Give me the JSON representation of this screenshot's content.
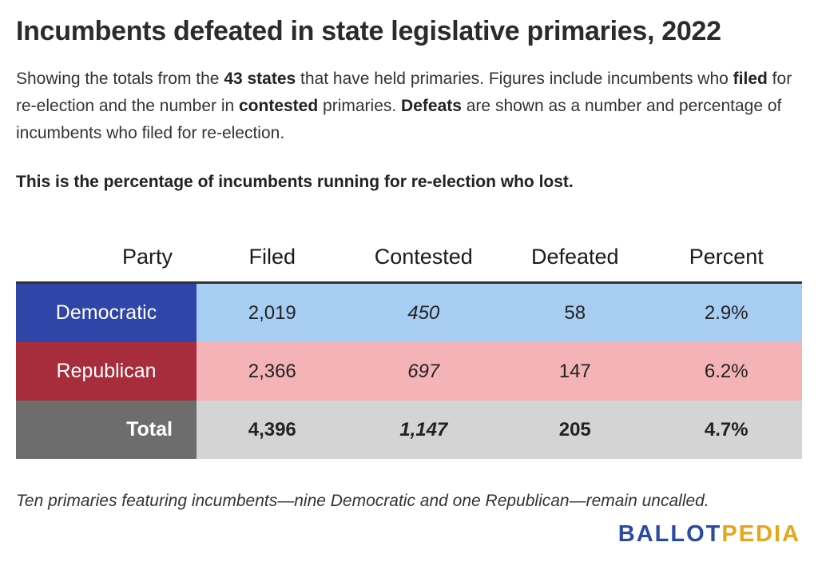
{
  "chart_data": {
    "type": "table",
    "title": "Incumbents defeated in state legislative primaries, 2022",
    "description": {
      "p1": "Showing the totals from the ",
      "b1": "43 states",
      "p2": " that have held primaries. Figures include incumbents who ",
      "b2": "filed",
      "p3": " for re-election and the number in ",
      "b3": "contested",
      "p4": " primaries. ",
      "b4": "Defeats",
      "p5": " are shown as a number and percentage of incumbents who filed for re-election."
    },
    "subtitle": "This is the percentage of incumbents running for re-election who lost.",
    "columns": [
      "Party",
      "Filed",
      "Contested",
      "Defeated",
      "Percent"
    ],
    "rows": [
      {
        "party": "Democratic",
        "filed": "2,019",
        "contested": "450",
        "defeated": "58",
        "percent": "2.9%"
      },
      {
        "party": "Republican",
        "filed": "2,366",
        "contested": "697",
        "defeated": "147",
        "percent": "6.2%"
      },
      {
        "party": "Total",
        "filed": "4,396",
        "contested": "1,147",
        "defeated": "205",
        "percent": "4.7%"
      }
    ],
    "values": {
      "filed": [
        2019,
        2366,
        4396
      ],
      "contested": [
        450,
        697,
        1147
      ],
      "defeated": [
        58,
        147,
        205
      ],
      "percent": [
        2.9,
        6.2,
        4.7
      ]
    },
    "note": "Ten primaries featuring incumbents—nine Democratic and one Republican—remain uncalled."
  },
  "logo": {
    "part1": "BALLOT",
    "part2": "PEDIA"
  },
  "colors": {
    "democratic_label": "#2f46a8",
    "democratic_row": "#a8cdf3",
    "republican_label": "#a82d3c",
    "republican_row": "#f4b3b6",
    "total_label": "#6d6d6d",
    "total_row": "#d4d4d4",
    "logo_blue": "#2b4aa6",
    "logo_gold": "#e6a619"
  }
}
